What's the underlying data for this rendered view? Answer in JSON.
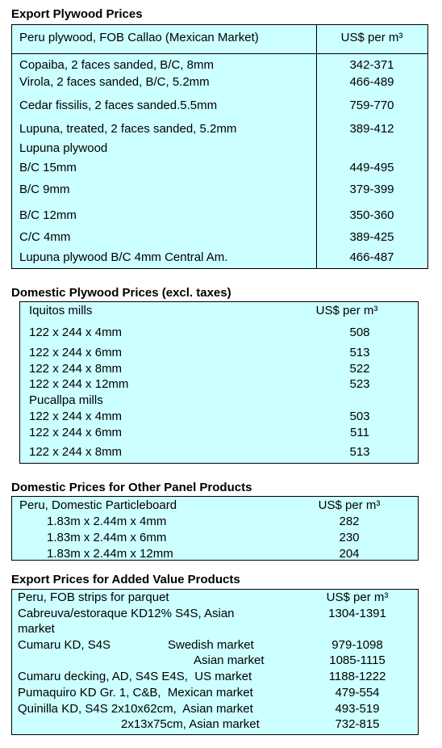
{
  "sections": [
    {
      "title": "Export Plywood Prices",
      "header": [
        "Peru plywood, FOB Callao (Mexican Market)",
        "US$ per m³"
      ],
      "rows": [
        {
          "label": "Copaiba, 2 faces sanded, B/C, 8mm",
          "value": "342-371"
        },
        {
          "label": "Virola, 2 faces sanded, B/C, 5.2mm",
          "value": "466-489"
        },
        {
          "label": "Cedar fissilis, 2 faces sanded.5.5mm",
          "value": "759-770"
        },
        {
          "label": "Lupuna, treated, 2 faces sanded, 5.2mm",
          "value": "389-412"
        },
        {
          "label": "Lupuna plywood"
        },
        {
          "label": "B/C 15mm",
          "value": "449-495"
        },
        {
          "label": "B/C 9mm",
          "value": "379-399"
        },
        {
          "label": "B/C 12mm",
          "value": "350-360"
        },
        {
          "label": "C/C 4mm",
          "value": "389-425"
        },
        {
          "label": "Lupuna plywood B/C 4mm Central Am.",
          "value": "466-487"
        }
      ]
    },
    {
      "title": "Domestic Plywood Prices (excl. taxes)",
      "header": [
        "Iquitos mills",
        "US$ per m³"
      ],
      "rows": [
        {
          "label": "122 x 244 x 4mm",
          "value": "508"
        },
        {
          "label": "122 x 244 x 6mm",
          "value": "513"
        },
        {
          "label": "122 x 244 x 8mm",
          "value": "522"
        },
        {
          "label": "122 x 244 x 12mm",
          "value": "523"
        },
        {
          "label": "Pucallpa mills"
        },
        {
          "label": "122 x 244 x 4mm",
          "value": "503"
        },
        {
          "label": "122 x 244 x 6mm",
          "value": "511"
        },
        {
          "label": "122 x 244 x 8mm",
          "value": "513"
        }
      ]
    },
    {
      "title": "Domestic Prices for Other Panel Products",
      "header": [
        "Peru, Domestic Particleboard",
        "US$ per m³"
      ],
      "rows": [
        {
          "label": "1.83m x 2.44m x 4mm",
          "value": "282"
        },
        {
          "label": "1.83m x 2.44m x 6mm",
          "value": "230"
        },
        {
          "label": "1.83m x 2.44m x 12mm",
          "value": "204"
        }
      ]
    },
    {
      "title": "Export Prices for Added Value Products",
      "header": [
        "Peru, FOB strips for parquet",
        "US$ per m³"
      ],
      "rows": [
        {
          "label": [
            "Cabreuva/estoraque KD12% S4S, Asian",
            "market"
          ],
          "value": "1304-1391"
        },
        {
          "label": "Cumaru KD, S4S",
          "market": "Swedish market",
          "value": "979-1098"
        },
        {
          "market": "Asian market",
          "value": "1085-1115"
        },
        {
          "label": "Cumaru decking, AD, S4S E4S,  US market",
          "value": "1188-1222"
        },
        {
          "label": "Pumaquiro KD Gr. 1, C&B,  Mexican market",
          "value": "479-554"
        },
        {
          "label": "Quinilla KD, S4S 2x10x62cm,  Asian market",
          "value": "493-519"
        },
        {
          "market": "2x13x75cm, Asian market",
          "value": "732-815"
        }
      ]
    }
  ]
}
